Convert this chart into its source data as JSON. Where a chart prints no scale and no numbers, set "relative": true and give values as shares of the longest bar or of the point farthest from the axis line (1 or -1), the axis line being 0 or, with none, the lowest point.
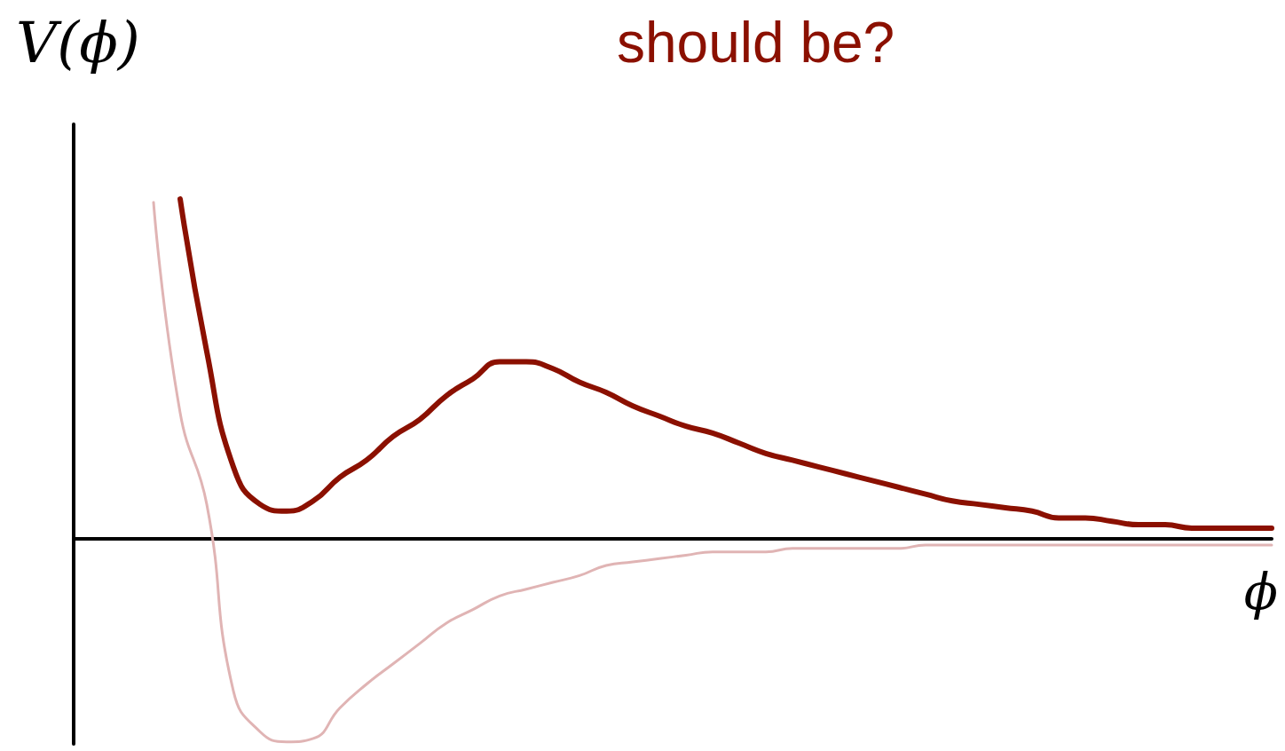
{
  "chart_data": {
    "type": "line",
    "relative": true,
    "ylabel": "V(ϕ)",
    "xlabel": "ϕ",
    "annotations": [
      "should be?"
    ],
    "grid": false,
    "marker": "none",
    "line_style": "solid",
    "categories": [
      null,
      null,
      null,
      null,
      null,
      null,
      null,
      null,
      null,
      null,
      null,
      null,
      null,
      null,
      null,
      null,
      null,
      null,
      null,
      null,
      null,
      null,
      null,
      null,
      null,
      null,
      null,
      null,
      null,
      null,
      null,
      null,
      null,
      null,
      null,
      null,
      null,
      null,
      null,
      null,
      null,
      null,
      null,
      null,
      null,
      null
    ],
    "series": [
      {
        "color": "#e0b4b4",
        "values": [
          null,
          null,
          null,
          0.99,
          0.37,
          0.1,
          -0.45,
          -0.57,
          -0.6,
          -0.59,
          -0.5,
          -0.43,
          -0.37,
          -0.31,
          -0.25,
          -0.21,
          -0.17,
          -0.15,
          -0.13,
          -0.11,
          -0.08,
          -0.07,
          -0.06,
          -0.05,
          -0.04,
          -0.04,
          -0.04,
          -0.03,
          -0.03,
          -0.03,
          -0.03,
          -0.03,
          -0.02,
          -0.02,
          -0.02,
          -0.02,
          -0.02,
          -0.02,
          -0.02,
          -0.02,
          -0.02,
          -0.02,
          -0.02,
          -0.02,
          -0.02,
          -0.02
        ]
      },
      {
        "color": "#8b1000",
        "values": [
          null,
          null,
          null,
          null,
          1.0,
          0.55,
          0.21,
          0.1,
          0.08,
          0.11,
          0.18,
          0.23,
          0.3,
          0.35,
          0.42,
          0.47,
          0.52,
          0.52,
          0.5,
          0.46,
          0.43,
          0.39,
          0.36,
          0.33,
          0.31,
          0.28,
          0.25,
          0.23,
          0.21,
          0.19,
          0.17,
          0.15,
          0.13,
          0.11,
          0.1,
          0.09,
          0.08,
          0.06,
          0.06,
          0.05,
          0.04,
          0.04,
          0.03,
          0.03,
          0.03,
          0.03
        ]
      }
    ]
  }
}
